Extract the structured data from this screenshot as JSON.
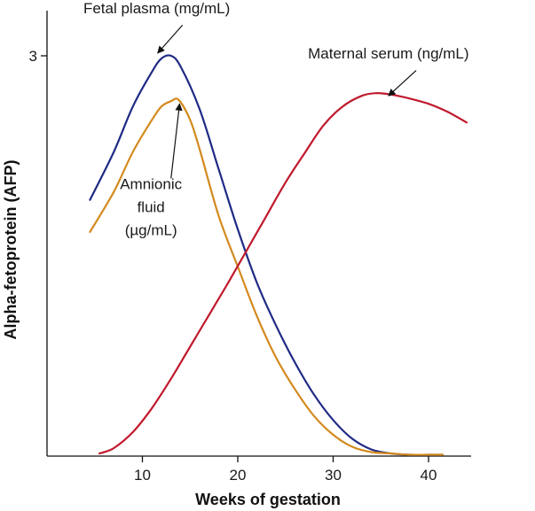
{
  "chart_data": {
    "type": "line",
    "title": "",
    "xlabel": "Weeks of gestation",
    "ylabel": "Alpha-fetoprotein (AFP)",
    "xlim": [
      0,
      45
    ],
    "ylim": [
      0,
      3
    ],
    "x_ticks": [
      10,
      20,
      30,
      40
    ],
    "y_ticks": [
      3
    ],
    "grid": false,
    "legend": "none",
    "series": [
      {
        "name": "Fetal plasma (mg/mL)",
        "color": "#1f2a85",
        "x": [
          4.5,
          7,
          9,
          11,
          12,
          13,
          14,
          16,
          18,
          20,
          22,
          24,
          26,
          28,
          30,
          32,
          34,
          36,
          38,
          40,
          41.5
        ],
        "y": [
          1.92,
          2.28,
          2.62,
          2.88,
          2.98,
          3.0,
          2.92,
          2.6,
          2.15,
          1.7,
          1.3,
          0.98,
          0.7,
          0.46,
          0.27,
          0.13,
          0.05,
          0.02,
          0.01,
          0.01,
          0.01
        ]
      },
      {
        "name": "Amnionic fluid (µg/mL)",
        "color": "#d38a1e",
        "x": [
          4.5,
          7,
          9,
          11,
          12,
          13,
          13.8,
          15,
          16,
          18,
          20,
          22,
          24,
          26,
          28,
          30,
          32,
          34,
          36,
          38,
          40,
          41.5
        ],
        "y": [
          1.68,
          1.98,
          2.28,
          2.52,
          2.62,
          2.66,
          2.67,
          2.52,
          2.3,
          1.8,
          1.42,
          1.05,
          0.74,
          0.5,
          0.3,
          0.16,
          0.07,
          0.03,
          0.02,
          0.01,
          0.01,
          0.01
        ]
      },
      {
        "name": "Maternal serum (ng/mL)",
        "color": "#c0192c",
        "x": [
          5.5,
          7,
          9,
          11,
          13,
          15,
          17,
          19,
          21,
          23,
          25,
          27,
          29,
          31,
          33,
          34.5,
          36,
          38,
          40,
          42,
          44
        ],
        "y": [
          0.02,
          0.06,
          0.18,
          0.36,
          0.58,
          0.82,
          1.06,
          1.3,
          1.55,
          1.8,
          2.05,
          2.27,
          2.48,
          2.62,
          2.7,
          2.72,
          2.71,
          2.68,
          2.64,
          2.58,
          2.5
        ]
      }
    ],
    "annotations": [
      {
        "lines": [
          "Fetal plasma (mg/mL)"
        ],
        "text_x": 11.5,
        "text_y": 3.32,
        "anchor": "middle",
        "arrow_from": [
          14.2,
          3.23
        ],
        "arrow_to": [
          11.6,
          3.02
        ]
      },
      {
        "lines": [
          "Maternal serum (ng/mL)"
        ],
        "text_x": 35.8,
        "text_y": 2.98,
        "anchor": "middle",
        "arrow_from": [
          38.7,
          2.89
        ],
        "arrow_to": [
          35.8,
          2.7
        ]
      },
      {
        "lines": [
          "Amnionic",
          "fluid",
          "(µg/mL)"
        ],
        "text_x": 10.9,
        "text_y": 2.0,
        "anchor": "middle",
        "arrow_from": [
          13.0,
          2.08
        ],
        "arrow_to": [
          13.9,
          2.64
        ]
      }
    ]
  }
}
